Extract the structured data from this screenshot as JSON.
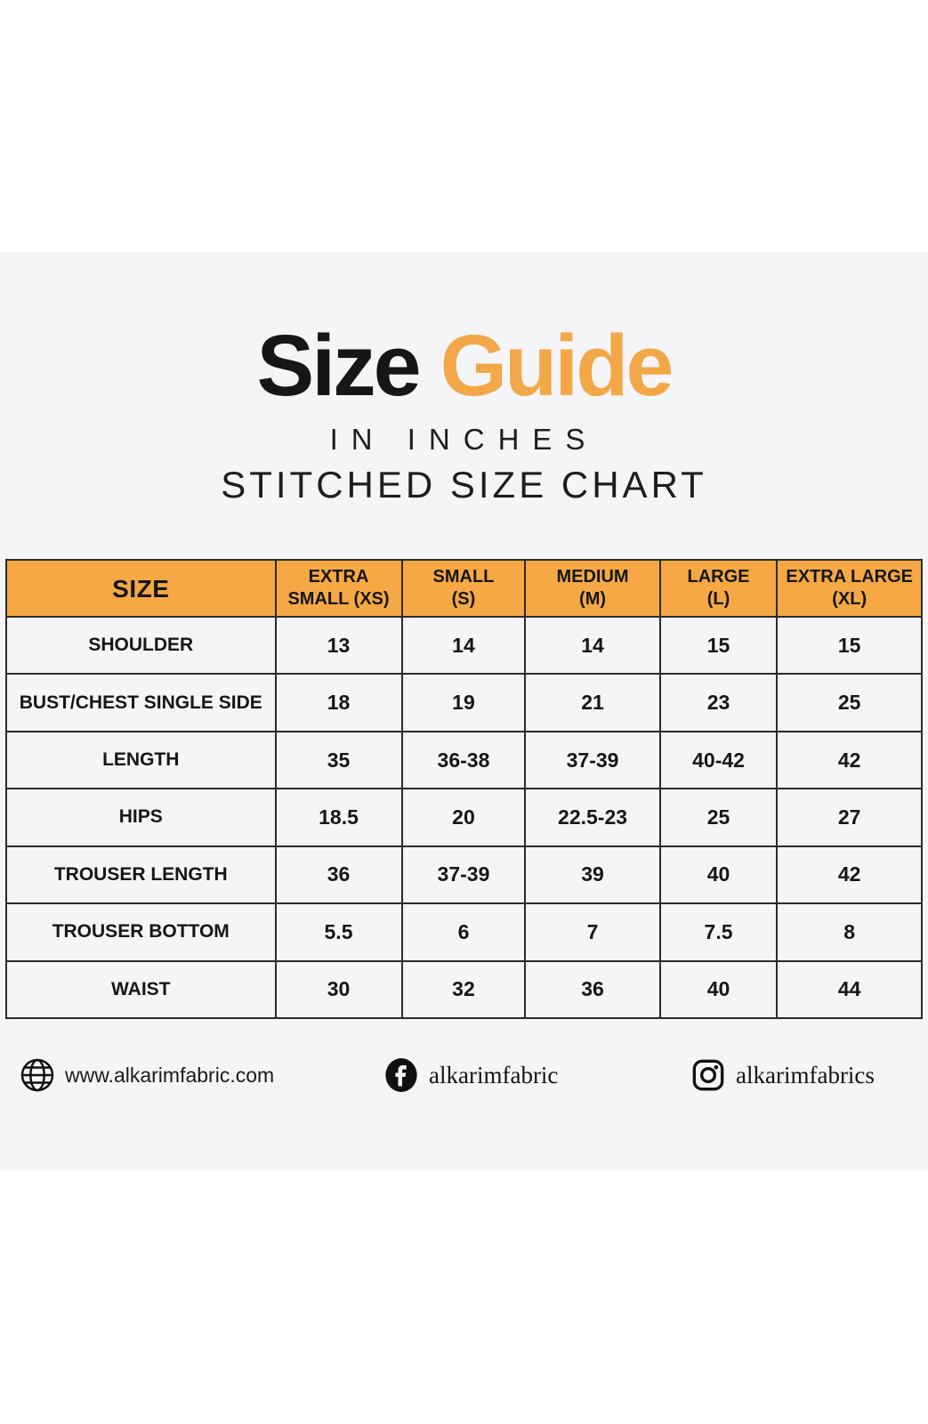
{
  "page": {
    "title_black": "Size",
    "title_orange": "Guide",
    "subtitle_line1": "IN INCHES",
    "subtitle_line2": "STITCHED SIZE CHART"
  },
  "colors": {
    "accent_orange": "#F2A848",
    "header_orange": "#F5A843",
    "text_dark": "#161616",
    "band_background": "#F5F5F7",
    "grid_line": "#2B2B2B"
  },
  "chart_data": {
    "type": "table",
    "title": "Size Guide - Stitched Size Chart (in inches)",
    "columns": [
      "SIZE",
      "EXTRA SMALL (XS)",
      "SMALL (S)",
      "MEDIUM (M)",
      "LARGE (L)",
      "EXTRA LARGE (XL)"
    ],
    "header_display_lines": [
      [
        "SIZE"
      ],
      [
        "EXTRA",
        "SMALL (XS)"
      ],
      [
        "SMALL",
        "(S)"
      ],
      [
        "MEDIUM",
        "(M)"
      ],
      [
        "LARGE",
        "(L)"
      ],
      [
        "EXTRA LARGE",
        "(XL)"
      ]
    ],
    "rows": [
      {
        "label": "SHOULDER",
        "values": [
          "13",
          "14",
          "14",
          "15",
          "15"
        ]
      },
      {
        "label": "BUST/CHEST SINGLE SIDE",
        "values": [
          "18",
          "19",
          "21",
          "23",
          "25"
        ]
      },
      {
        "label": "LENGTH",
        "values": [
          "35",
          "36-38",
          "37-39",
          "40-42",
          "42"
        ]
      },
      {
        "label": "HIPS",
        "values": [
          "18.5",
          "20",
          "22.5-23",
          "25",
          "27"
        ]
      },
      {
        "label": "TROUSER LENGTH",
        "values": [
          "36",
          "37-39",
          "39",
          "40",
          "42"
        ]
      },
      {
        "label": "TROUSER BOTTOM",
        "values": [
          "5.5",
          "6",
          "7",
          "7.5",
          "8"
        ]
      },
      {
        "label": "WAIST",
        "values": [
          "30",
          "32",
          "36",
          "40",
          "44"
        ]
      }
    ]
  },
  "footer": {
    "website": "www.alkarimfabric.com",
    "facebook_handle": "alkarimfabric",
    "instagram_handle": "alkarimfabrics"
  }
}
